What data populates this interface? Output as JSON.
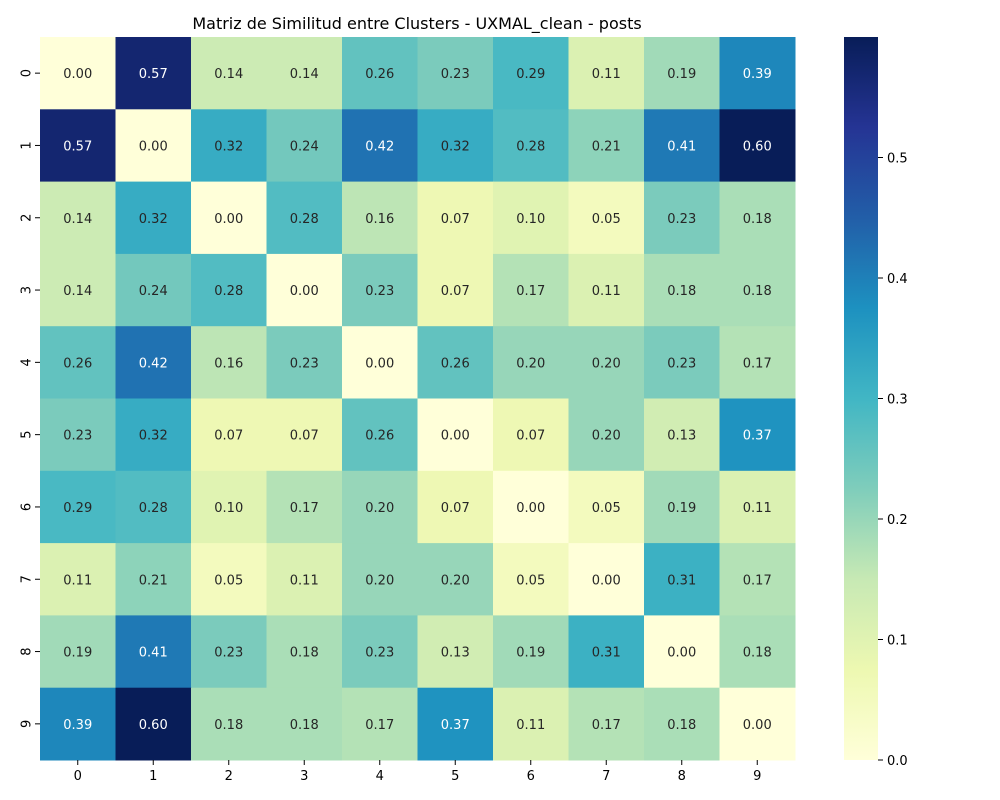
{
  "chart_data": {
    "type": "heatmap",
    "title": "Matriz de Similitud entre Clusters - UXMAL_clean - posts",
    "xlabel": "",
    "ylabel": "",
    "x_categories": [
      "0",
      "1",
      "2",
      "3",
      "4",
      "5",
      "6",
      "7",
      "8",
      "9"
    ],
    "y_categories": [
      "0",
      "1",
      "2",
      "3",
      "4",
      "5",
      "6",
      "7",
      "8",
      "9"
    ],
    "values": [
      [
        0.0,
        0.57,
        0.14,
        0.14,
        0.26,
        0.23,
        0.29,
        0.11,
        0.19,
        0.39
      ],
      [
        0.57,
        0.0,
        0.32,
        0.24,
        0.42,
        0.32,
        0.28,
        0.21,
        0.41,
        0.6
      ],
      [
        0.14,
        0.32,
        0.0,
        0.28,
        0.16,
        0.07,
        0.1,
        0.05,
        0.23,
        0.18
      ],
      [
        0.14,
        0.24,
        0.28,
        0.0,
        0.23,
        0.07,
        0.17,
        0.11,
        0.18,
        0.18
      ],
      [
        0.26,
        0.42,
        0.16,
        0.23,
        0.0,
        0.26,
        0.2,
        0.2,
        0.23,
        0.17
      ],
      [
        0.23,
        0.32,
        0.07,
        0.07,
        0.26,
        0.0,
        0.07,
        0.2,
        0.13,
        0.37
      ],
      [
        0.29,
        0.28,
        0.1,
        0.17,
        0.2,
        0.07,
        0.0,
        0.05,
        0.19,
        0.11
      ],
      [
        0.11,
        0.21,
        0.05,
        0.11,
        0.2,
        0.2,
        0.05,
        0.0,
        0.31,
        0.17
      ],
      [
        0.19,
        0.41,
        0.23,
        0.18,
        0.23,
        0.13,
        0.19,
        0.31,
        0.0,
        0.18
      ],
      [
        0.39,
        0.6,
        0.18,
        0.18,
        0.17,
        0.37,
        0.11,
        0.17,
        0.18,
        0.0
      ]
    ],
    "value_format": "0.00",
    "colormap": "YlGnBu",
    "color_range": [
      0.0,
      0.6
    ],
    "colorbar_ticks": [
      "0.0",
      "0.1",
      "0.2",
      "0.3",
      "0.4",
      "0.5"
    ],
    "grid": false,
    "legend": "colorbar-right"
  }
}
